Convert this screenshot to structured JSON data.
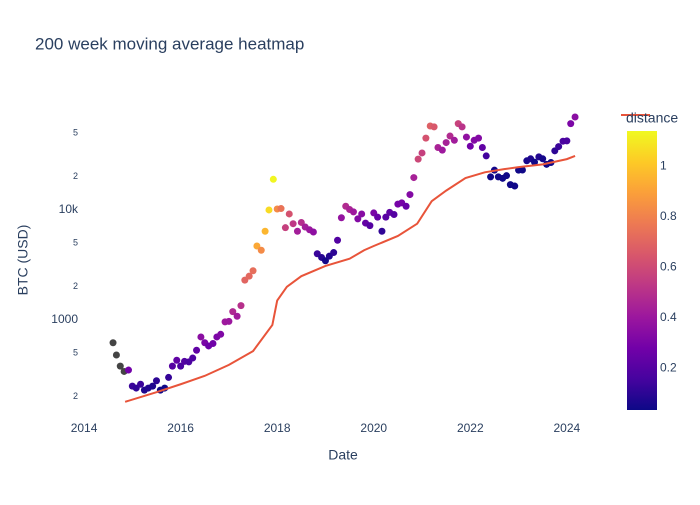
{
  "chart_data": {
    "type": "scatter",
    "title": "200 week moving average heatmap",
    "xlabel": "Date",
    "ylabel": "BTC (USD)",
    "log_y": true,
    "grid": false,
    "xlim": [
      2013.75,
      2024.5
    ],
    "xticks": [
      2014,
      2016,
      2018,
      2020,
      2022,
      2024
    ],
    "ylim": [
      123,
      100000
    ],
    "yticks": [
      {
        "value": 200,
        "label": "2"
      },
      {
        "value": 500,
        "label": "5"
      },
      1000,
      {
        "value": 2000,
        "label": "2"
      },
      {
        "value": 5000,
        "label": "5"
      },
      {
        "value": 10000,
        "label": "10k"
      },
      {
        "value": 20000,
        "label": "2"
      },
      {
        "value": 50000,
        "label": "5"
      }
    ],
    "colorbar": {
      "title": "distance",
      "clim": [
        0.034,
        1.139
      ],
      "ticks": [
        0.2,
        0.4,
        0.6,
        0.8,
        1
      ],
      "colorscale": [
        "#0d0887",
        "#46039f",
        "#7201a8",
        "#9c179e",
        "#bd3786",
        "#d8576b",
        "#ed7953",
        "#fb9f3a",
        "#fdca26",
        "#f0f921"
      ],
      "null_color": "#444444"
    },
    "series": [
      {
        "type": "scatter",
        "x": [
          2014.6,
          2014.67,
          2014.75,
          2014.83,
          2014.92,
          2015.0,
          2015.08,
          2015.17,
          2015.25,
          2015.33,
          2015.42,
          2015.5,
          2015.58,
          2015.67,
          2015.75,
          2015.83,
          2015.92,
          2016.0,
          2016.08,
          2016.17,
          2016.25,
          2016.33,
          2016.42,
          2016.5,
          2016.58,
          2016.67,
          2016.75,
          2016.83,
          2016.92,
          2017.0,
          2017.08,
          2017.17,
          2017.25,
          2017.33,
          2017.42,
          2017.5,
          2017.58,
          2017.67,
          2017.75,
          2017.83,
          2017.92,
          2018.0,
          2018.08,
          2018.17,
          2018.25,
          2018.33,
          2018.42,
          2018.5,
          2018.58,
          2018.67,
          2018.75,
          2018.83,
          2018.92,
          2019.0,
          2019.08,
          2019.17,
          2019.25,
          2019.33,
          2019.42,
          2019.5,
          2019.58,
          2019.67,
          2019.75,
          2019.83,
          2019.92,
          2020.0,
          2020.08,
          2020.17,
          2020.25,
          2020.33,
          2020.42,
          2020.5,
          2020.58,
          2020.67,
          2020.75,
          2020.83,
          2020.92,
          2021.0,
          2021.08,
          2021.17,
          2021.25,
          2021.33,
          2021.42,
          2021.5,
          2021.58,
          2021.67,
          2021.75,
          2021.83,
          2021.92,
          2022.0,
          2022.08,
          2022.17,
          2022.25,
          2022.33,
          2022.42,
          2022.5,
          2022.58,
          2022.67,
          2022.75,
          2022.83,
          2022.92,
          2023.0,
          2023.08,
          2023.17,
          2023.25,
          2023.33,
          2023.42,
          2023.5,
          2023.58,
          2023.67,
          2023.75,
          2023.83,
          2023.92,
          2024.0,
          2024.08,
          2024.17
        ],
        "values": [
          620,
          480,
          380,
          340,
          350,
          250,
          240,
          260,
          230,
          240,
          250,
          280,
          230,
          240,
          300,
          380,
          430,
          380,
          420,
          415,
          450,
          530,
          700,
          620,
          580,
          610,
          700,
          740,
          960,
          970,
          1190,
          1080,
          1350,
          2300,
          2500,
          2800,
          4700,
          4300,
          6400,
          10000,
          19000,
          10200,
          10300,
          6900,
          9200,
          7500,
          6400,
          7700,
          7000,
          6600,
          6300,
          4000,
          3700,
          3450,
          3800,
          4100,
          5300,
          8500,
          10800,
          10100,
          9600,
          8300,
          9200,
          7600,
          7200,
          9400,
          8600,
          6400,
          8600,
          9500,
          9100,
          11300,
          11600,
          10800,
          13800,
          19700,
          29000,
          33000,
          45000,
          58000,
          57000,
          37000,
          35000,
          41000,
          47000,
          43000,
          61000,
          57000,
          46000,
          38000,
          43000,
          45000,
          37000,
          31000,
          20000,
          23000,
          20000,
          19400,
          20500,
          17000,
          16500,
          23000,
          23100,
          28000,
          29200,
          27200,
          30400,
          29200,
          26000,
          27000,
          34500,
          37700,
          42200,
          42500,
          61000,
          70000
        ],
        "distance": [
          null,
          null,
          null,
          null,
          0.28,
          0.13,
          0.11,
          0.13,
          0.07,
          0.08,
          0.07,
          0.1,
          0.04,
          0.04,
          0.12,
          0.2,
          0.23,
          0.17,
          0.19,
          0.17,
          0.18,
          0.23,
          0.35,
          0.3,
          0.26,
          0.27,
          0.31,
          0.32,
          0.41,
          0.4,
          0.47,
          0.42,
          0.5,
          0.7,
          0.71,
          0.73,
          0.92,
          0.83,
          0.96,
          1.06,
          1.13,
          0.83,
          0.75,
          0.56,
          0.63,
          0.53,
          0.43,
          0.49,
          0.43,
          0.4,
          0.36,
          0.13,
          0.09,
          0.05,
          0.08,
          0.1,
          0.19,
          0.38,
          0.48,
          0.45,
          0.41,
          0.33,
          0.34,
          0.24,
          0.2,
          0.3,
          0.25,
          0.11,
          0.21,
          0.23,
          0.2,
          0.29,
          0.29,
          0.25,
          0.33,
          0.44,
          0.59,
          0.56,
          0.63,
          0.68,
          0.65,
          0.45,
          0.41,
          0.44,
          0.48,
          0.42,
          0.57,
          0.51,
          0.37,
          0.28,
          0.33,
          0.33,
          0.23,
          0.15,
          0.04,
          0.05,
          0.04,
          0.04,
          0.04,
          0.04,
          0.04,
          0.04,
          0.04,
          0.06,
          0.07,
          0.04,
          0.08,
          0.05,
          0.04,
          0.04,
          0.1,
          0.13,
          0.17,
          0.17,
          0.31,
          0.35
        ]
      },
      {
        "type": "line",
        "color": "#e8543a",
        "x": [
          2014.85,
          2015.5,
          2016.0,
          2016.5,
          2017.0,
          2017.5,
          2017.9,
          2018.0,
          2018.2,
          2018.5,
          2019.0,
          2019.5,
          2019.8,
          2020.0,
          2020.5,
          2020.9,
          2021.2,
          2021.5,
          2021.9,
          2022.3,
          2022.7,
          2023.0,
          2023.5,
          2024.0,
          2024.17
        ],
        "values": [
          180,
          220,
          260,
          310,
          390,
          520,
          900,
          1500,
          2000,
          2500,
          3100,
          3600,
          4300,
          4700,
          5800,
          7500,
          12000,
          15000,
          19500,
          22000,
          23500,
          24500,
          26000,
          29000,
          31000
        ]
      }
    ]
  }
}
